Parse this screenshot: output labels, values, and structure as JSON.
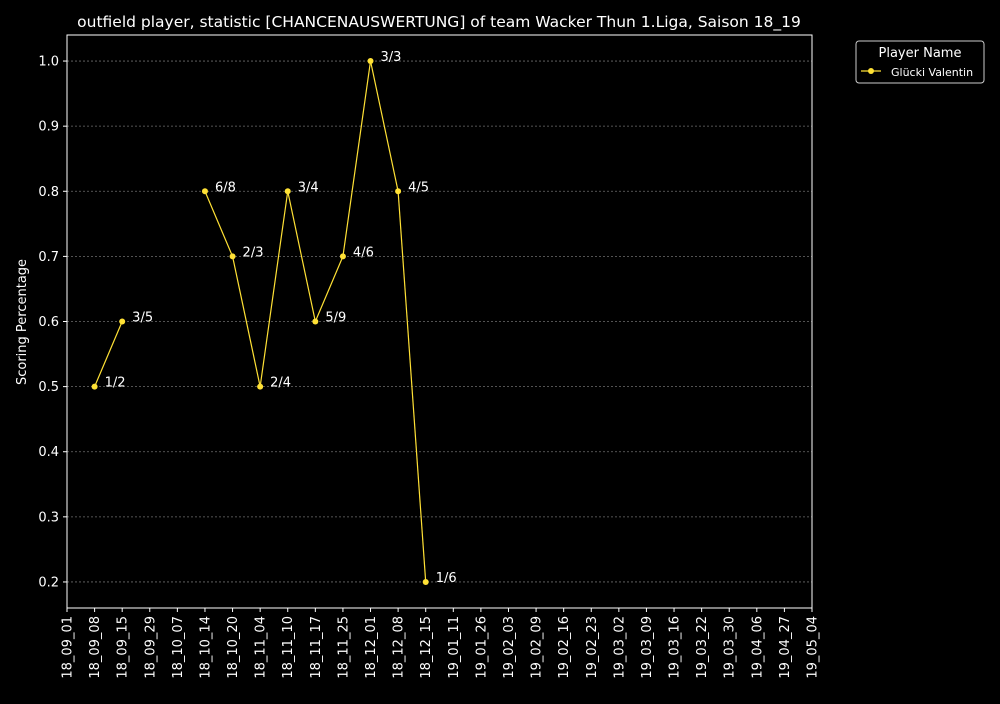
{
  "chart_data": {
    "type": "line",
    "title": "outfield player, statistic [CHANCENAUSWERTUNG] of team Wacker Thun 1.Liga, Saison 18_19",
    "xlabel": "",
    "ylabel": "Scoring Percentage",
    "categories": [
      "18_09_01",
      "18_09_08",
      "18_09_15",
      "18_09_29",
      "18_10_07",
      "18_10_14",
      "18_10_20",
      "18_11_04",
      "18_11_10",
      "18_11_17",
      "18_11_25",
      "18_12_01",
      "18_12_08",
      "18_12_15",
      "19_01_11",
      "19_01_26",
      "19_02_03",
      "19_02_09",
      "19_02_16",
      "19_02_23",
      "19_03_02",
      "19_03_09",
      "19_03_16",
      "19_03_22",
      "19_03_30",
      "19_04_06",
      "19_04_27",
      "19_05_04"
    ],
    "yticks": [
      "0.2",
      "0.3",
      "0.4",
      "0.5",
      "0.6",
      "0.7",
      "0.8",
      "0.9",
      "1.0"
    ],
    "ylim": [
      0.16,
      1.04
    ],
    "grid": true,
    "legend": {
      "title": "Player Name",
      "position": "upper-right-outside"
    },
    "series": [
      {
        "name": "Glücki Valentin",
        "color": "#ffe135",
        "points": [
          {
            "x": "18_09_08",
            "y": 0.5,
            "label": "1/2"
          },
          {
            "x": "18_09_15",
            "y": 0.6,
            "label": "3/5"
          },
          {
            "x": "18_10_14",
            "y": 0.8,
            "label": "6/8"
          },
          {
            "x": "18_10_20",
            "y": 0.7,
            "label": "2/3"
          },
          {
            "x": "18_11_04",
            "y": 0.5,
            "label": "2/4"
          },
          {
            "x": "18_11_10",
            "y": 0.8,
            "label": "3/4"
          },
          {
            "x": "18_11_17",
            "y": 0.6,
            "label": "5/9"
          },
          {
            "x": "18_11_25",
            "y": 0.7,
            "label": "4/6"
          },
          {
            "x": "18_12_01",
            "y": 1.0,
            "label": "3/3"
          },
          {
            "x": "18_12_08",
            "y": 0.8,
            "label": "4/5"
          },
          {
            "x": "18_12_15",
            "y": 0.2,
            "label": "1/6"
          }
        ],
        "segments": [
          [
            "18_09_08",
            "18_09_15"
          ],
          [
            "18_10_14",
            "18_10_20"
          ],
          [
            "18_10_20",
            "18_11_04"
          ],
          [
            "18_11_04",
            "18_11_10"
          ],
          [
            "18_11_10",
            "18_11_17"
          ],
          [
            "18_11_17",
            "18_11_25"
          ],
          [
            "18_11_25",
            "18_12_01"
          ],
          [
            "18_12_01",
            "18_12_08"
          ],
          [
            "18_12_08",
            "18_12_15"
          ]
        ]
      }
    ],
    "colors": {
      "background": "#000000",
      "axis": "#ffffff",
      "grid": "#6e6e6e",
      "text": "#ffffff"
    }
  }
}
